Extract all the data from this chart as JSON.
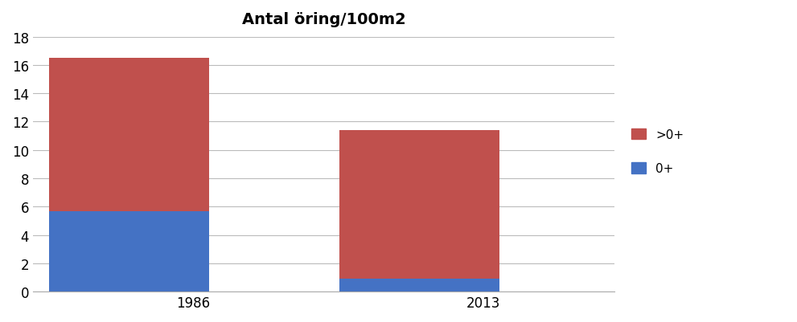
{
  "title": "Antal öring/100m2",
  "categories": [
    "1986",
    "2013"
  ],
  "values_0plus": [
    5.7,
    0.9
  ],
  "values_gt0plus": [
    10.8,
    10.5
  ],
  "color_0plus": "#4472C4",
  "color_gt0plus": "#C0504D",
  "ylim": [
    0,
    18
  ],
  "yticks": [
    0,
    2,
    4,
    6,
    8,
    10,
    12,
    14,
    16,
    18
  ],
  "bar_width": 0.55,
  "title_fontsize": 14,
  "tick_fontsize": 12,
  "background_color": "#FFFFFF",
  "grid_color": "#BBBBBB",
  "xlim": [
    -0.05,
    1.95
  ]
}
